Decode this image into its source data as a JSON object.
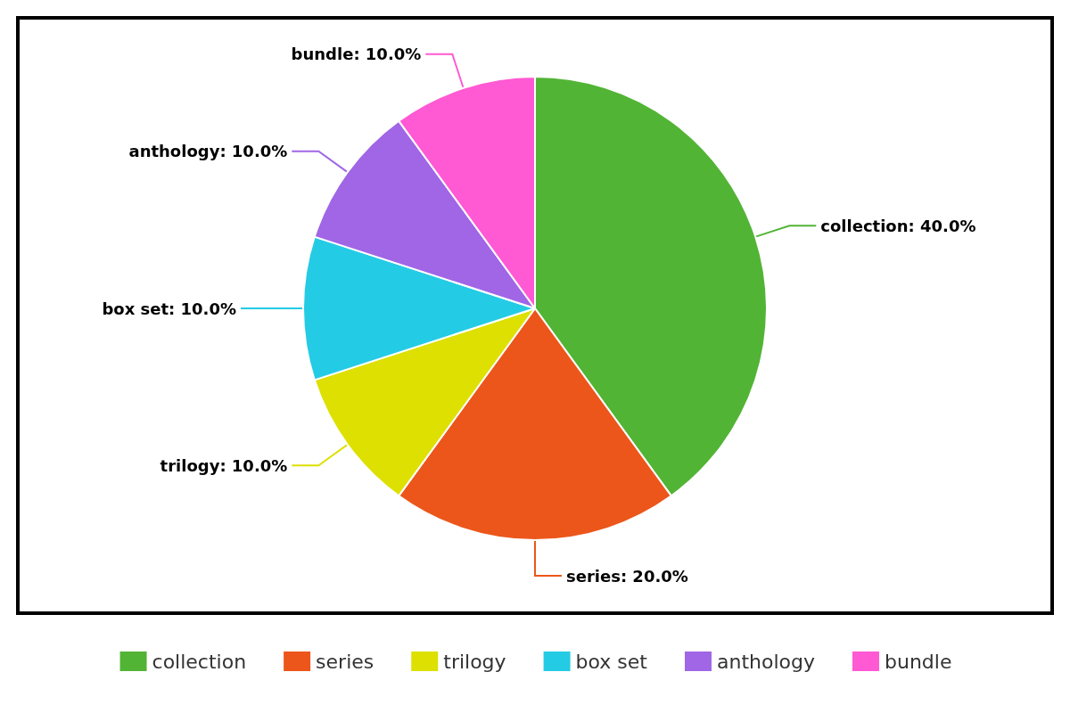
{
  "chart_data": {
    "type": "pie",
    "categories": [
      "collection",
      "series",
      "trilogy",
      "box set",
      "anthology",
      "bundle"
    ],
    "values": [
      40,
      20,
      10,
      10,
      10,
      10
    ],
    "value_labels": [
      "collection: 40.0%",
      "series: 20.0%",
      "trilogy: 10.0%",
      "box set: 10.0%",
      "anthology: 10.0%",
      "bundle: 10.0%"
    ],
    "colors": [
      "#52b435",
      "#ec561b",
      "#dde000",
      "#24cbe5",
      "#a066e5",
      "#ff59d3"
    ],
    "legend": "bottom"
  }
}
